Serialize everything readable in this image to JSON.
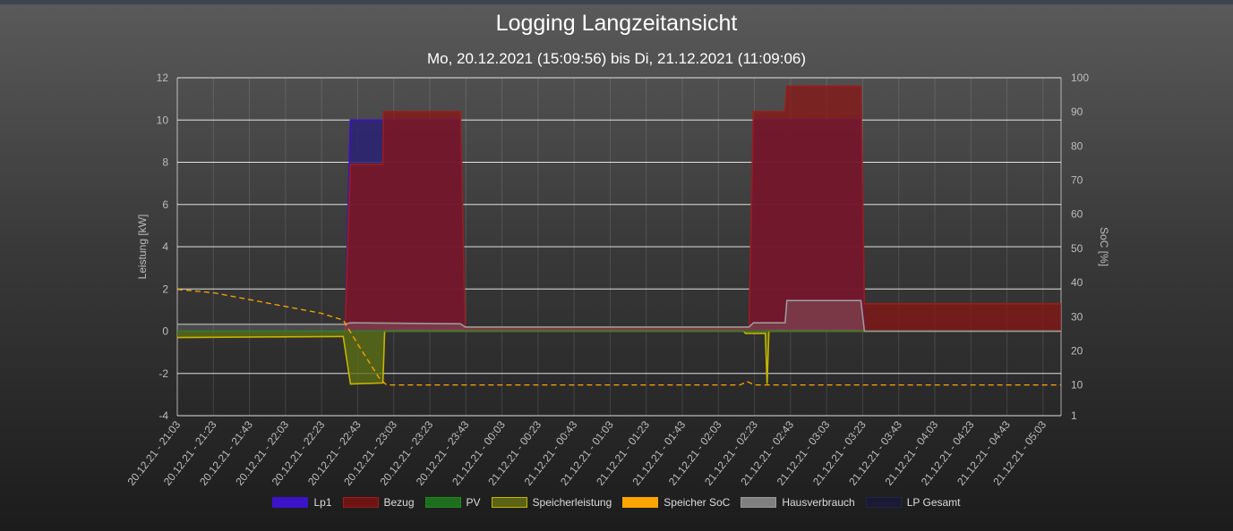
{
  "title": "Logging Langzeitansicht",
  "subtitle": "Mo, 20.12.2021 (15:09:56) bis Di, 21.12.2021 (11:09:06)",
  "chart_data": {
    "type": "line",
    "ylabel": "Leistung [kW]",
    "y2label": "SoC [%]",
    "ylim": [
      -4,
      12
    ],
    "y2lim": [
      1,
      100
    ],
    "y_ticks": [
      12,
      10,
      8,
      6,
      4,
      2,
      0,
      -2,
      -4
    ],
    "y2_ticks": [
      100,
      90,
      80,
      70,
      60,
      50,
      40,
      30,
      20,
      10,
      1
    ],
    "grid": true,
    "legend_position": "bottom",
    "x_tick_labels": [
      "20.12.21 - 21:03",
      "20.12.21 - 21:23",
      "20.12.21 - 21:43",
      "20.12.21 - 22:03",
      "20.12.21 - 22:23",
      "20.12.21 - 22:43",
      "20.12.21 - 23:03",
      "20.12.21 - 23:23",
      "20.12.21 - 23:43",
      "21.12.21 - 00:03",
      "21.12.21 - 00:23",
      "21.12.21 - 00:43",
      "21.12.21 - 01:03",
      "21.12.21 - 01:23",
      "21.12.21 - 01:43",
      "21.12.21 - 02:03",
      "21.12.21 - 02:23",
      "21.12.21 - 02:43",
      "21.12.21 - 03:03",
      "21.12.21 - 03:23",
      "21.12.21 - 03:43",
      "21.12.21 - 04:03",
      "21.12.21 - 04:23",
      "21.12.21 - 04:43",
      "21.12.21 - 05:03"
    ],
    "series": [
      {
        "name": "Lp1",
        "axis": "left",
        "color": "#3c14c8",
        "fill": "rgba(60,20,200,0.2)",
        "dashed": false,
        "points": [
          [
            0,
            0
          ],
          [
            4.65,
            0
          ],
          [
            4.8,
            10
          ],
          [
            7.85,
            10
          ],
          [
            7.98,
            0
          ],
          [
            15.85,
            0
          ],
          [
            15.97,
            10
          ],
          [
            18.95,
            10
          ],
          [
            19.05,
            0
          ],
          [
            24.5,
            0
          ]
        ]
      },
      {
        "name": "Bezug",
        "axis": "left",
        "color": "#9a1d1d",
        "fill": "rgba(140,20,20,0.72)",
        "dashed": false,
        "points": [
          [
            0,
            0
          ],
          [
            4.65,
            0
          ],
          [
            4.8,
            7.9
          ],
          [
            5.7,
            7.9
          ],
          [
            5.72,
            10.4
          ],
          [
            7.85,
            10.4
          ],
          [
            7.98,
            0.2
          ],
          [
            15.85,
            0.2
          ],
          [
            15.97,
            10.4
          ],
          [
            16.85,
            10.4
          ],
          [
            16.9,
            11.6
          ],
          [
            18.95,
            11.6
          ],
          [
            19.05,
            1.3
          ],
          [
            24.5,
            1.3
          ]
        ]
      },
      {
        "name": "PV",
        "axis": "left",
        "color": "#1e7d1e",
        "fill": "rgba(30,125,30,0.75)",
        "dashed": false,
        "points": [
          [
            0,
            0
          ],
          [
            24.5,
            0
          ]
        ]
      },
      {
        "name": "Speicherleistung",
        "axis": "left",
        "color": "#c8b400",
        "fill": "rgba(90,110,20,0.8)",
        "dashed": false,
        "points": [
          [
            0,
            -0.3
          ],
          [
            4.6,
            -0.25
          ],
          [
            4.8,
            -2.5
          ],
          [
            5.7,
            -2.45
          ],
          [
            5.75,
            0
          ],
          [
            15.7,
            0
          ],
          [
            15.75,
            -0.1
          ],
          [
            16.3,
            -0.1
          ],
          [
            16.35,
            -2.5
          ],
          [
            16.4,
            0
          ],
          [
            24.5,
            0
          ]
        ]
      },
      {
        "name": "Speicher SoC",
        "axis": "right",
        "color": "#ffa500",
        "fill": "none",
        "dashed": true,
        "points": [
          [
            0,
            38
          ],
          [
            1,
            37
          ],
          [
            2,
            35
          ],
          [
            3,
            33
          ],
          [
            4,
            31
          ],
          [
            4.6,
            29
          ],
          [
            5,
            22
          ],
          [
            5.6,
            12
          ],
          [
            5.8,
            10
          ],
          [
            15.6,
            10
          ],
          [
            15.8,
            11
          ],
          [
            16.0,
            10
          ],
          [
            24.5,
            10
          ]
        ]
      },
      {
        "name": "Hausverbrauch",
        "axis": "left",
        "color": "#9a9a9a",
        "fill": "rgba(150,150,150,0.25)",
        "dashed": false,
        "points": [
          [
            0,
            0.33
          ],
          [
            4.65,
            0.33
          ],
          [
            4.8,
            0.4
          ],
          [
            7.85,
            0.35
          ],
          [
            7.98,
            0.2
          ],
          [
            15.85,
            0.2
          ],
          [
            15.97,
            0.4
          ],
          [
            16.85,
            0.4
          ],
          [
            16.9,
            1.45
          ],
          [
            18.95,
            1.45
          ],
          [
            19.05,
            0
          ],
          [
            24.5,
            0
          ]
        ]
      },
      {
        "name": "LP Gesamt",
        "axis": "left",
        "color": "#24244a",
        "fill": "rgba(40,40,90,0.85)",
        "dashed": false,
        "points": [
          [
            0,
            0
          ],
          [
            4.65,
            0
          ],
          [
            4.8,
            10
          ],
          [
            7.85,
            10
          ],
          [
            7.98,
            0
          ],
          [
            15.85,
            0
          ],
          [
            15.97,
            10
          ],
          [
            18.95,
            10
          ],
          [
            19.05,
            0
          ],
          [
            24.5,
            0
          ]
        ]
      }
    ]
  },
  "legend_swatches": [
    {
      "name": "Lp1",
      "color": "#3c14c8",
      "border": "#3c14c8"
    },
    {
      "name": "Bezug",
      "color": "#6e1414",
      "border": "#9a1d1d"
    },
    {
      "name": "PV",
      "color": "#1e6e1e",
      "border": "#1e8a1e"
    },
    {
      "name": "Speicherleistung",
      "color": "#5a6414",
      "border": "#c8b400"
    },
    {
      "name": "Speicher SoC",
      "color": "#ffa500",
      "border": "#ffa500"
    },
    {
      "name": "Hausverbrauch",
      "color": "#808080",
      "border": "#9a9a9a"
    },
    {
      "name": "LP Gesamt",
      "color": "#1a1a34",
      "border": "#24244a"
    }
  ]
}
